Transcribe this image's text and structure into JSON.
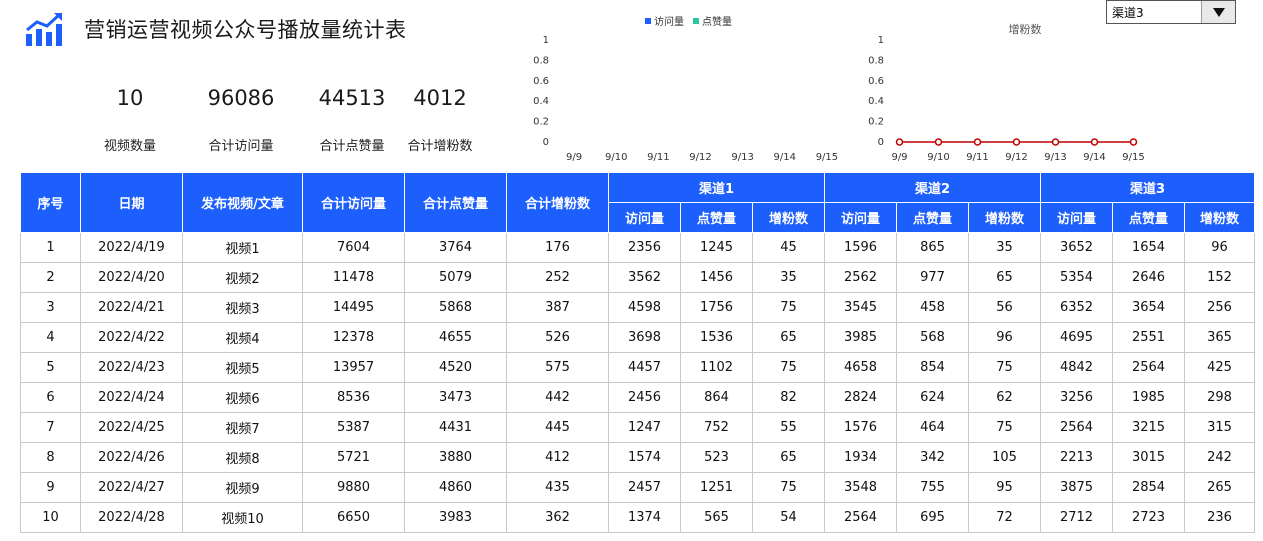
{
  "header": {
    "title": "营销运营视频公众号播放量统计表",
    "icon": "bar-chart-trend-icon",
    "accent_color": "#1d5ffc"
  },
  "stats": [
    {
      "value": "10",
      "label": "视频数量"
    },
    {
      "value": "96086",
      "label": "合计访问量"
    },
    {
      "value": "44513",
      "label": "合计点赞量"
    },
    {
      "value": "4012",
      "label": "合计增粉数"
    }
  ],
  "channel_select": {
    "value": "渠道3"
  },
  "chart_data": [
    {
      "type": "bar",
      "title": "",
      "categories": [
        "9/9",
        "9/10",
        "9/11",
        "9/12",
        "9/13",
        "9/14",
        "9/15"
      ],
      "series": [
        {
          "name": "访问量",
          "values": [
            0,
            0,
            0,
            0,
            0,
            0,
            0
          ],
          "color": "#1d5ffc"
        },
        {
          "name": "点赞量",
          "values": [
            0,
            0,
            0,
            0,
            0,
            0,
            0
          ],
          "color": "#2ec4a0"
        }
      ],
      "yticks": [
        "0",
        "0.2",
        "0.4",
        "0.6",
        "0.8",
        "1"
      ],
      "ylim": [
        0,
        1
      ],
      "legend": "top",
      "grid": false
    },
    {
      "type": "line",
      "title": "增粉数",
      "categories": [
        "9/9",
        "9/10",
        "9/11",
        "9/12",
        "9/13",
        "9/14",
        "9/15"
      ],
      "series": [
        {
          "values": [
            0,
            0,
            0,
            0,
            0,
            0,
            0
          ],
          "color": "#c00000"
        }
      ],
      "yticks": [
        "0",
        "0.2",
        "0.4",
        "0.6",
        "0.8",
        "1"
      ],
      "ylim": [
        0,
        1
      ],
      "grid": false
    }
  ],
  "table": {
    "headers": {
      "index": "序号",
      "date": "日期",
      "video": "发布视频/文章",
      "total_visits": "合计访问量",
      "total_likes": "合计点赞量",
      "total_fans": "合计增粉数",
      "ch1": "渠道1",
      "ch2": "渠道2",
      "ch3": "渠道3",
      "visits": "访问量",
      "likes": "点赞量",
      "fans": "增粉数"
    },
    "rows": [
      [
        "1",
        "2022/4/19",
        "视频1",
        "7604",
        "3764",
        "176",
        "2356",
        "1245",
        "45",
        "1596",
        "865",
        "35",
        "3652",
        "1654",
        "96"
      ],
      [
        "2",
        "2022/4/20",
        "视频2",
        "11478",
        "5079",
        "252",
        "3562",
        "1456",
        "35",
        "2562",
        "977",
        "65",
        "5354",
        "2646",
        "152"
      ],
      [
        "3",
        "2022/4/21",
        "视频3",
        "14495",
        "5868",
        "387",
        "4598",
        "1756",
        "75",
        "3545",
        "458",
        "56",
        "6352",
        "3654",
        "256"
      ],
      [
        "4",
        "2022/4/22",
        "视频4",
        "12378",
        "4655",
        "526",
        "3698",
        "1536",
        "65",
        "3985",
        "568",
        "96",
        "4695",
        "2551",
        "365"
      ],
      [
        "5",
        "2022/4/23",
        "视频5",
        "13957",
        "4520",
        "575",
        "4457",
        "1102",
        "75",
        "4658",
        "854",
        "75",
        "4842",
        "2564",
        "425"
      ],
      [
        "6",
        "2022/4/24",
        "视频6",
        "8536",
        "3473",
        "442",
        "2456",
        "864",
        "82",
        "2824",
        "624",
        "62",
        "3256",
        "1985",
        "298"
      ],
      [
        "7",
        "2022/4/25",
        "视频7",
        "5387",
        "4431",
        "445",
        "1247",
        "752",
        "55",
        "1576",
        "464",
        "75",
        "2564",
        "3215",
        "315"
      ],
      [
        "8",
        "2022/4/26",
        "视频8",
        "5721",
        "3880",
        "412",
        "1574",
        "523",
        "65",
        "1934",
        "342",
        "105",
        "2213",
        "3015",
        "242"
      ],
      [
        "9",
        "2022/4/27",
        "视频9",
        "9880",
        "4860",
        "435",
        "2457",
        "1251",
        "75",
        "3548",
        "755",
        "95",
        "3875",
        "2854",
        "265"
      ],
      [
        "10",
        "2022/4/28",
        "视频10",
        "6650",
        "3983",
        "362",
        "1374",
        "565",
        "54",
        "2564",
        "695",
        "72",
        "2712",
        "2723",
        "236"
      ]
    ]
  }
}
